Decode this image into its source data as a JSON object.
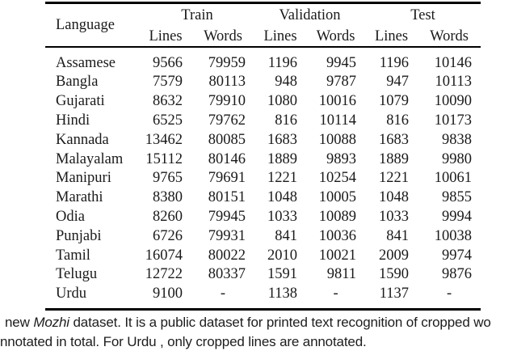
{
  "table": {
    "header": {
      "language": "Language",
      "groups": [
        "Train",
        "Validation",
        "Test"
      ],
      "subheaders": [
        "Lines",
        "Words",
        "Lines",
        "Words",
        "Lines",
        "Words"
      ]
    },
    "rows": [
      {
        "language": "Assamese",
        "values": [
          "9566",
          "79959",
          "1196",
          "9945",
          "1196",
          "10146"
        ]
      },
      {
        "language": "Bangla",
        "values": [
          "7579",
          "80113",
          "948",
          "9787",
          "947",
          "10113"
        ]
      },
      {
        "language": "Gujarati",
        "values": [
          "8632",
          "79910",
          "1080",
          "10016",
          "1079",
          "10090"
        ]
      },
      {
        "language": "Hindi",
        "values": [
          "6525",
          "79762",
          "816",
          "10114",
          "816",
          "10173"
        ]
      },
      {
        "language": "Kannada",
        "values": [
          "13462",
          "80085",
          "1683",
          "10088",
          "1683",
          "9838"
        ]
      },
      {
        "language": "Malayalam",
        "values": [
          "15112",
          "80146",
          "1889",
          "9893",
          "1889",
          "9980"
        ]
      },
      {
        "language": "Manipuri",
        "values": [
          "9765",
          "79691",
          "1221",
          "10254",
          "1221",
          "10061"
        ]
      },
      {
        "language": "Marathi",
        "values": [
          "8380",
          "80151",
          "1048",
          "10005",
          "1048",
          "9855"
        ]
      },
      {
        "language": "Odia",
        "values": [
          "8260",
          "79945",
          "1033",
          "10089",
          "1033",
          "9994"
        ]
      },
      {
        "language": "Punjabi",
        "values": [
          "6726",
          "79931",
          "841",
          "10036",
          "841",
          "10038"
        ]
      },
      {
        "language": "Tamil",
        "values": [
          "16074",
          "80022",
          "2010",
          "10021",
          "2009",
          "9974"
        ]
      },
      {
        "language": "Telugu",
        "values": [
          "12722",
          "80337",
          "1591",
          "9811",
          "1590",
          "9876"
        ]
      },
      {
        "language": "Urdu",
        "values": [
          "9100",
          "-",
          "1138",
          "-",
          "1137",
          "-"
        ]
      }
    ]
  },
  "caption": {
    "line1_prefix": "new ",
    "line1_italic": "Mozhi",
    "line1_rest": " dataset. It is a public dataset for printed text recognition of cropped wo",
    "line2": "nnotated in total. For Urdu , only cropped lines are annotated."
  },
  "colors": {
    "background": "#ffffff",
    "text": "#1a1a1a",
    "rule": "#000000",
    "caption_text": "#1d1d1d"
  }
}
